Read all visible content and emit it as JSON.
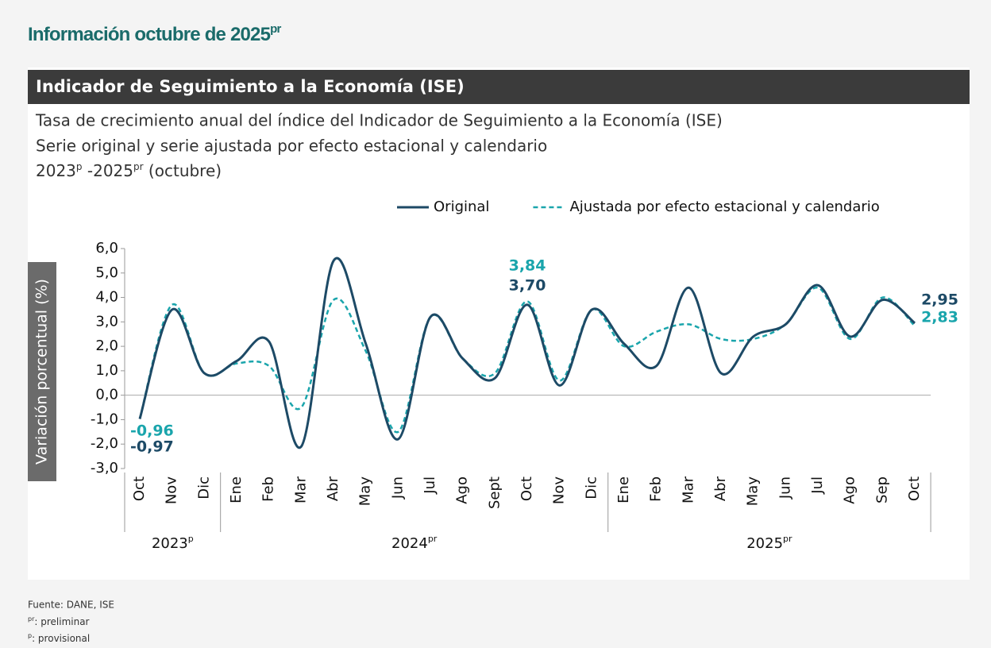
{
  "header": {
    "title": "Información octubre de 2025",
    "title_sup": "pr"
  },
  "chart_data": {
    "type": "line",
    "title": "Indicador de Seguimiento a la Economía (ISE)",
    "subtitle": [
      "Tasa de crecimiento anual del índice del Indicador de Seguimiento a la Economía (ISE)",
      "Serie original y serie ajustada por efecto estacional y calendario"
    ],
    "period": {
      "start": "2023",
      "start_sup": "p",
      "sep": " -2025",
      "end_sup": "pr",
      "rest": " (octubre)"
    },
    "ylabel": "Variación porcentual (%)",
    "categories": [
      "Oct",
      "Nov",
      "Dic",
      "Ene",
      "Feb",
      "Mar",
      "Abr",
      "May",
      "Jun",
      "Jul",
      "Ago",
      "Sept",
      "Oct",
      "Nov",
      "Dic",
      "Ene",
      "Feb",
      "Mar",
      "Abr",
      "May",
      "Jun",
      "Jul",
      "Ago",
      "Sep",
      "Oct"
    ],
    "groups": [
      {
        "label": "2023",
        "sup": "p",
        "count": 3
      },
      {
        "label": "2024",
        "sup": "pr",
        "count": 12
      },
      {
        "label": "2025",
        "sup": "pr",
        "count": 10
      }
    ],
    "series": [
      {
        "name": "Original",
        "color": "#1d4a66",
        "dash": false,
        "values": [
          -0.97,
          3.5,
          0.9,
          1.4,
          2.2,
          -2.1,
          5.5,
          2.1,
          -1.8,
          3.2,
          1.5,
          0.7,
          3.7,
          0.4,
          3.5,
          2.1,
          1.2,
          4.4,
          0.9,
          2.4,
          2.9,
          4.5,
          2.4,
          3.9,
          2.95
        ],
        "value_labels": [
          "-0,97",
          null,
          null,
          null,
          null,
          null,
          null,
          null,
          null,
          null,
          null,
          null,
          "3,70",
          null,
          null,
          null,
          null,
          null,
          null,
          null,
          null,
          null,
          null,
          null,
          "2,95"
        ]
      },
      {
        "name": "Ajustada por efecto estacional y calendario",
        "color": "#1aa5ac",
        "dash": true,
        "values": [
          -0.96,
          3.7,
          0.9,
          1.3,
          1.2,
          -0.5,
          3.9,
          1.8,
          -1.5,
          3.2,
          1.5,
          0.9,
          3.84,
          0.6,
          3.5,
          2.0,
          2.6,
          2.9,
          2.3,
          2.3,
          2.9,
          4.4,
          2.3,
          4.0,
          2.83
        ],
        "value_labels": [
          "-0,96",
          null,
          null,
          null,
          null,
          null,
          null,
          null,
          null,
          null,
          null,
          null,
          "3,84",
          null,
          null,
          null,
          null,
          null,
          null,
          null,
          null,
          null,
          null,
          null,
          "2,83"
        ]
      }
    ],
    "ylim": [
      -3,
      6
    ],
    "yticks": [
      {
        "value": 6,
        "label": "6,0"
      },
      {
        "value": 5,
        "label": "5,0"
      },
      {
        "value": 4,
        "label": "4,0"
      },
      {
        "value": 3,
        "label": "3,0"
      },
      {
        "value": 2,
        "label": "2,0"
      },
      {
        "value": 1,
        "label": "1,0"
      },
      {
        "value": 0,
        "label": "0,0"
      },
      {
        "value": -1,
        "label": "-1,0"
      },
      {
        "value": -2,
        "label": "-2,0"
      },
      {
        "value": -3,
        "label": "-3,0"
      }
    ],
    "legend": "top-right"
  },
  "footer": {
    "source": "Fuente: DANE, ISE",
    "notes": [
      {
        "sup": "pr",
        "text": ": preliminar"
      },
      {
        "sup": "p",
        "text": ": provisional"
      }
    ]
  }
}
